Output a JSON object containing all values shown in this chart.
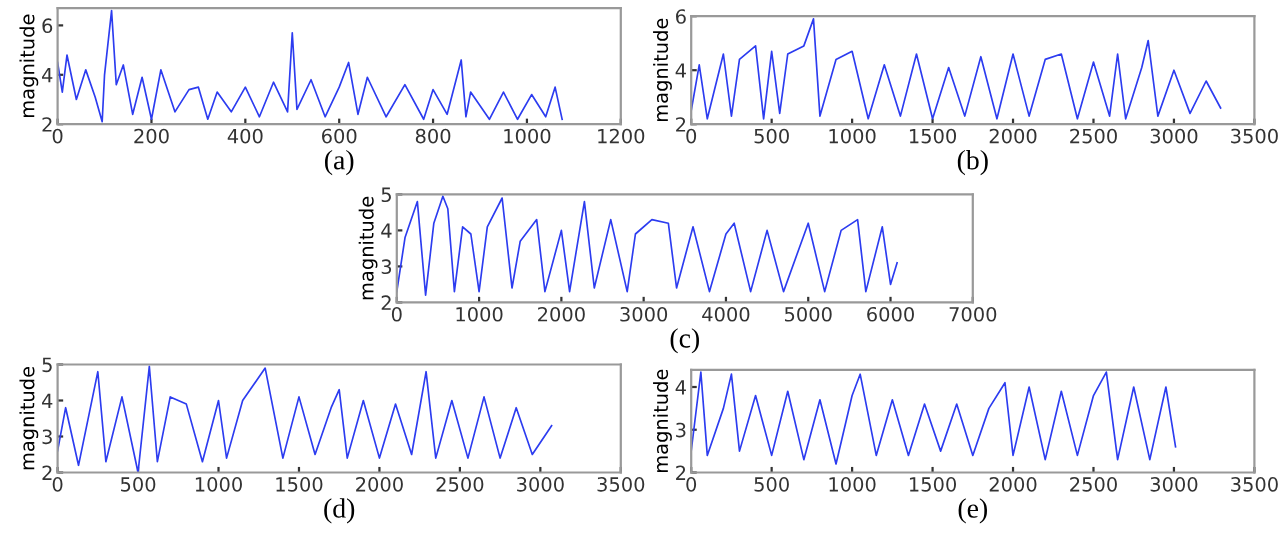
{
  "chart_data": [
    {
      "type": "line",
      "xlabel": "(a)",
      "ylabel": "magnitude",
      "xlim": [
        0,
        1200
      ],
      "xticks": [
        0,
        200,
        400,
        600,
        800,
        1000,
        1200
      ],
      "ylim": [
        2,
        6.7
      ],
      "yticks": [
        2,
        4,
        6
      ],
      "grid": false,
      "series": [
        {
          "color": "#2c3cf0",
          "x": [
            0,
            10,
            20,
            40,
            60,
            80,
            95,
            100,
            115,
            125,
            140,
            160,
            180,
            200,
            220,
            250,
            280,
            300,
            320,
            340,
            370,
            400,
            430,
            460,
            490,
            500,
            510,
            540,
            570,
            600,
            620,
            640,
            660,
            700,
            740,
            780,
            800,
            830,
            860,
            870,
            880,
            920,
            950,
            980,
            1010,
            1040,
            1060,
            1075
          ],
          "values": [
            4.5,
            3.3,
            4.8,
            3.0,
            4.2,
            3.1,
            2.1,
            4.0,
            6.6,
            3.6,
            4.4,
            2.4,
            3.9,
            2.2,
            4.2,
            2.5,
            3.4,
            3.5,
            2.2,
            3.3,
            2.5,
            3.5,
            2.3,
            3.7,
            2.5,
            5.7,
            2.6,
            3.8,
            2.3,
            3.5,
            4.5,
            2.4,
            3.9,
            2.3,
            3.6,
            2.2,
            3.4,
            2.4,
            4.6,
            2.3,
            3.3,
            2.2,
            3.3,
            2.2,
            3.2,
            2.3,
            3.5,
            2.2
          ]
        }
      ]
    },
    {
      "type": "line",
      "xlabel": "(b)",
      "ylabel": "magnitude",
      "xlim": [
        0,
        3500
      ],
      "xticks": [
        0,
        500,
        1000,
        1500,
        2000,
        2500,
        3000,
        3500
      ],
      "ylim": [
        2,
        6
      ],
      "yticks": [
        2,
        4,
        6
      ],
      "grid": false,
      "series": [
        {
          "color": "#2c3cf0",
          "x": [
            0,
            50,
            100,
            200,
            250,
            300,
            400,
            450,
            500,
            550,
            600,
            700,
            760,
            800,
            900,
            1000,
            1100,
            1200,
            1300,
            1400,
            1500,
            1600,
            1700,
            1800,
            1900,
            2000,
            2100,
            2200,
            2300,
            2400,
            2500,
            2600,
            2650,
            2700,
            2800,
            2840,
            2900,
            3000,
            3100,
            3200,
            3290
          ],
          "values": [
            2.5,
            4.2,
            2.2,
            4.6,
            2.3,
            4.4,
            4.9,
            2.2,
            4.7,
            2.4,
            4.6,
            4.9,
            5.9,
            2.3,
            4.4,
            4.7,
            2.2,
            4.2,
            2.3,
            4.6,
            2.2,
            4.1,
            2.3,
            4.5,
            2.2,
            4.6,
            2.3,
            4.4,
            4.6,
            2.2,
            4.3,
            2.3,
            4.6,
            2.2,
            4.1,
            5.1,
            2.3,
            4.0,
            2.4,
            3.6,
            2.6
          ]
        }
      ]
    },
    {
      "type": "line",
      "xlabel": "(c)",
      "ylabel": "magnitude",
      "xlim": [
        0,
        7000
      ],
      "xticks": [
        0,
        1000,
        2000,
        3000,
        4000,
        5000,
        6000,
        7000
      ],
      "ylim": [
        2,
        5
      ],
      "yticks": [
        2,
        3,
        4,
        5
      ],
      "grid": false,
      "series": [
        {
          "color": "#2c3cf0",
          "x": [
            0,
            100,
            250,
            350,
            450,
            560,
            620,
            700,
            800,
            900,
            1000,
            1100,
            1280,
            1400,
            1500,
            1700,
            1800,
            2000,
            2100,
            2280,
            2400,
            2600,
            2800,
            2900,
            3100,
            3300,
            3400,
            3600,
            3800,
            4000,
            4100,
            4300,
            4500,
            4700,
            5000,
            5200,
            5400,
            5600,
            5700,
            5900,
            6000,
            6080
          ],
          "values": [
            2.3,
            3.8,
            4.8,
            2.2,
            4.2,
            4.95,
            4.6,
            2.3,
            4.1,
            3.9,
            2.3,
            4.1,
            4.9,
            2.4,
            3.7,
            4.3,
            2.3,
            4.0,
            2.3,
            4.8,
            2.4,
            4.3,
            2.3,
            3.9,
            4.3,
            4.2,
            2.4,
            4.1,
            2.3,
            3.9,
            4.2,
            2.3,
            4.0,
            2.3,
            4.2,
            2.3,
            4.0,
            4.3,
            2.3,
            4.1,
            2.5,
            3.1
          ]
        }
      ]
    },
    {
      "type": "line",
      "xlabel": "(d)",
      "ylabel": "magnitude",
      "xlim": [
        0,
        3500
      ],
      "xticks": [
        0,
        500,
        1000,
        1500,
        2000,
        2500,
        3000,
        3500
      ],
      "ylim": [
        2,
        5
      ],
      "yticks": [
        2,
        3,
        4,
        5
      ],
      "grid": false,
      "series": [
        {
          "color": "#2c3cf0",
          "x": [
            0,
            50,
            130,
            250,
            300,
            400,
            500,
            570,
            620,
            700,
            800,
            900,
            1000,
            1050,
            1150,
            1290,
            1400,
            1500,
            1600,
            1700,
            1750,
            1800,
            1900,
            2000,
            2100,
            2200,
            2290,
            2350,
            2450,
            2550,
            2650,
            2750,
            2850,
            2950,
            3070
          ],
          "values": [
            2.6,
            3.8,
            2.2,
            4.8,
            2.3,
            4.1,
            2.0,
            4.95,
            2.3,
            4.1,
            3.9,
            2.3,
            4.0,
            2.4,
            4.0,
            4.9,
            2.4,
            4.1,
            2.5,
            3.8,
            4.3,
            2.4,
            4.0,
            2.4,
            3.9,
            2.5,
            4.8,
            2.4,
            4.0,
            2.4,
            4.1,
            2.4,
            3.8,
            2.5,
            3.3
          ]
        }
      ]
    },
    {
      "type": "line",
      "xlabel": "(e)",
      "ylabel": "magnitude",
      "xlim": [
        0,
        3500
      ],
      "xticks": [
        0,
        500,
        1000,
        1500,
        2000,
        2500,
        3000,
        3500
      ],
      "ylim": [
        2,
        4.4
      ],
      "yticks": [
        2,
        3,
        4
      ],
      "grid": false,
      "series": [
        {
          "color": "#2c3cf0",
          "x": [
            0,
            60,
            100,
            200,
            250,
            300,
            400,
            500,
            600,
            700,
            800,
            900,
            1000,
            1050,
            1150,
            1250,
            1350,
            1450,
            1550,
            1650,
            1750,
            1850,
            1950,
            2000,
            2100,
            2200,
            2300,
            2400,
            2500,
            2580,
            2650,
            2750,
            2850,
            2950,
            3010
          ],
          "values": [
            2.5,
            4.35,
            2.4,
            3.5,
            4.3,
            2.5,
            3.8,
            2.4,
            3.9,
            2.3,
            3.7,
            2.2,
            3.8,
            4.3,
            2.4,
            3.7,
            2.4,
            3.6,
            2.5,
            3.6,
            2.4,
            3.5,
            4.1,
            2.4,
            4.0,
            2.3,
            3.9,
            2.4,
            3.8,
            4.35,
            2.3,
            4.0,
            2.3,
            4.0,
            2.6
          ]
        }
      ]
    }
  ]
}
